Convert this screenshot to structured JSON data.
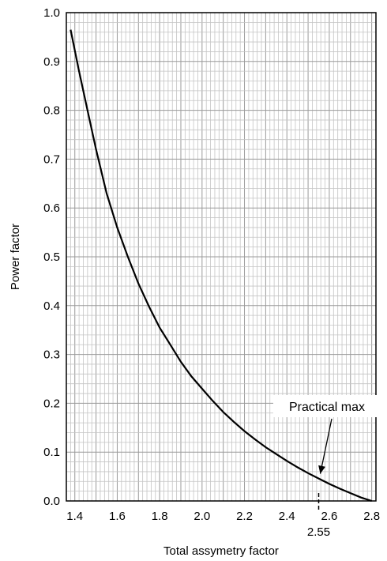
{
  "chart_data": {
    "type": "line",
    "xlabel": "Total assymetry factor",
    "ylabel": "Power factor",
    "xlim": [
      1.36,
      2.82
    ],
    "ylim": [
      0.0,
      1.0
    ],
    "x_ticks": [
      "1.4",
      "1.6",
      "1.8",
      "2.0",
      "2.2",
      "2.4",
      "2.6",
      "2.8"
    ],
    "x_tick_values": [
      1.4,
      1.6,
      1.8,
      2.0,
      2.2,
      2.4,
      2.6,
      2.8
    ],
    "y_ticks": [
      "0.0",
      "0.1",
      "0.2",
      "0.3",
      "0.4",
      "0.5",
      "0.6",
      "0.7",
      "0.8",
      "0.9",
      "1.0"
    ],
    "y_tick_values": [
      0.0,
      0.1,
      0.2,
      0.3,
      0.4,
      0.5,
      0.6,
      0.7,
      0.8,
      0.9,
      1.0
    ],
    "grid": true,
    "series": [
      {
        "x": [
          1.38,
          1.42,
          1.46,
          1.5,
          1.55,
          1.6,
          1.65,
          1.7,
          1.75,
          1.8,
          1.85,
          1.9,
          1.95,
          2.0,
          2.05,
          2.1,
          2.15,
          2.2,
          2.25,
          2.3,
          2.35,
          2.4,
          2.45,
          2.5,
          2.55,
          2.6,
          2.65,
          2.7,
          2.75,
          2.8
        ],
        "y": [
          0.965,
          0.88,
          0.8,
          0.72,
          0.63,
          0.56,
          0.5,
          0.445,
          0.398,
          0.355,
          0.32,
          0.285,
          0.255,
          0.23,
          0.205,
          0.182,
          0.162,
          0.143,
          0.126,
          0.11,
          0.096,
          0.082,
          0.069,
          0.057,
          0.046,
          0.035,
          0.025,
          0.016,
          0.007,
          0.0
        ],
        "color": "#000000"
      }
    ],
    "annotations": [
      {
        "text": "Practical max",
        "x": 2.55,
        "y": 0.046
      },
      {
        "text": "2.55",
        "x": 2.55,
        "y": 0.0
      }
    ]
  }
}
